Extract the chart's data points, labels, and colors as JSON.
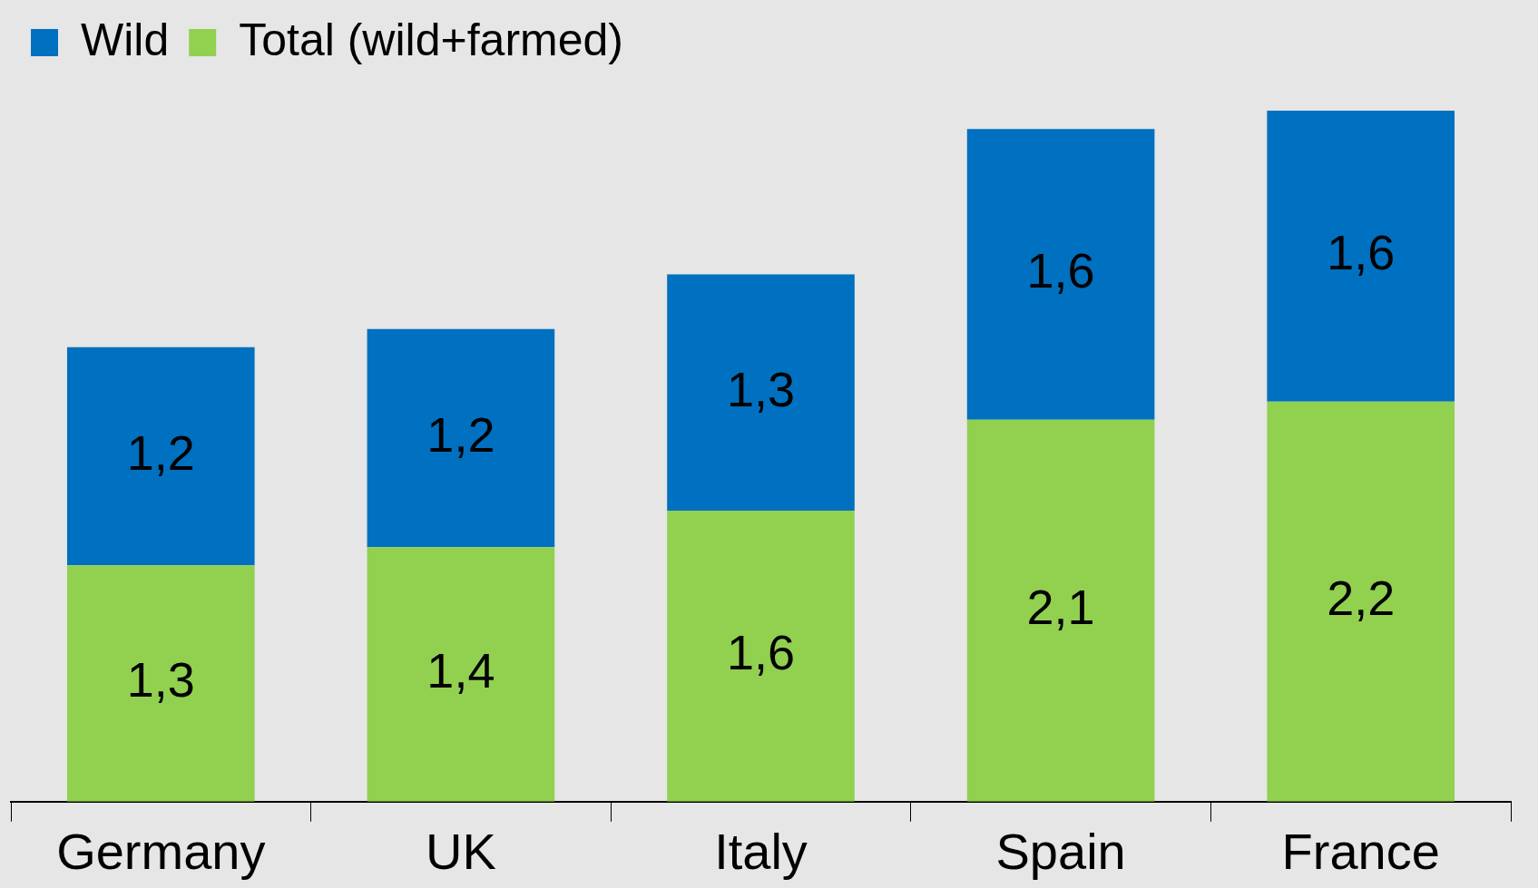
{
  "chart_data": {
    "type": "bar",
    "stacked": true,
    "legend": "top left",
    "categories": [
      "Germany",
      "UK",
      "Italy",
      "Spain",
      "France"
    ],
    "series": [
      {
        "name": "Total (wild+farmed)",
        "color": "#92d050",
        "values": [
          1.3,
          1.4,
          1.6,
          2.1,
          2.2
        ],
        "value_labels": [
          "1,3",
          "1,4",
          "1,6",
          "2,1",
          "2,2"
        ]
      },
      {
        "name": "Wild",
        "color": "#0070c0",
        "values": [
          1.2,
          1.2,
          1.3,
          1.6,
          1.6
        ],
        "value_labels": [
          "1,2",
          "1,2",
          "1,3",
          "1,6",
          "1,6"
        ]
      }
    ]
  }
}
